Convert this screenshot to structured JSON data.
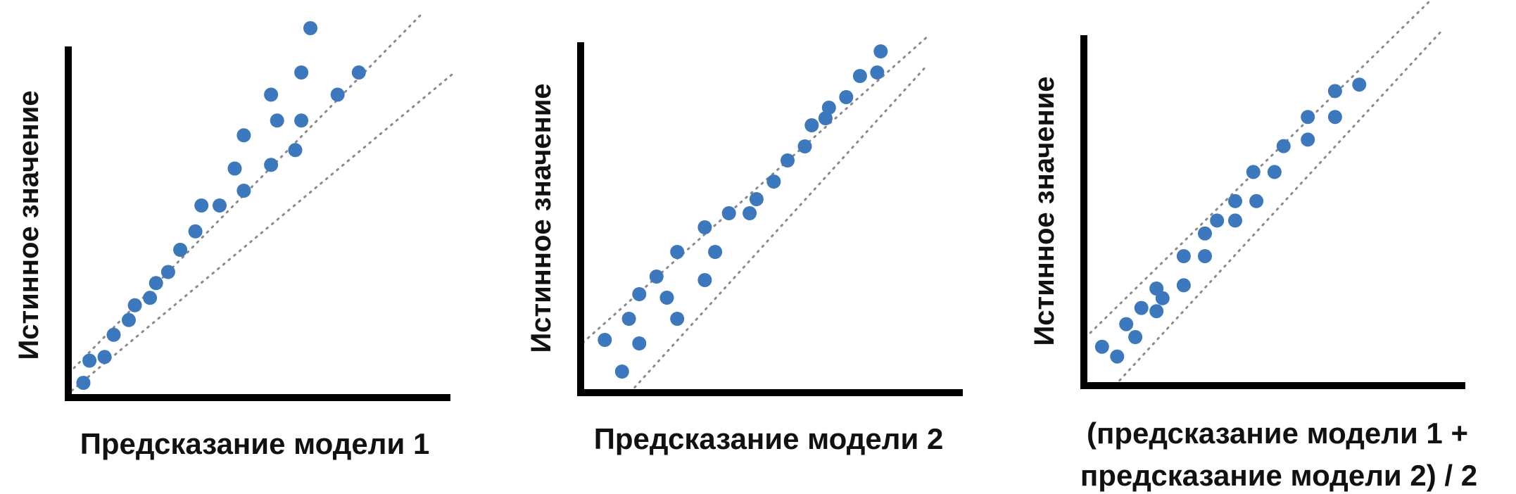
{
  "colors": {
    "point": "#3b78be",
    "axis": "#000000",
    "band": "#8a8a8a",
    "text": "#111111"
  },
  "chart_data": [
    {
      "type": "scatter",
      "xlabel": "Предсказание модели 1",
      "ylabel": "Истинное значение",
      "xlim": [
        0,
        100
      ],
      "ylim": [
        0,
        100
      ],
      "band_lines": "dotted",
      "points": [
        {
          "x": 5,
          "y": 4
        },
        {
          "x": 7,
          "y": 10
        },
        {
          "x": 12,
          "y": 11
        },
        {
          "x": 15,
          "y": 17
        },
        {
          "x": 20,
          "y": 21
        },
        {
          "x": 22,
          "y": 25
        },
        {
          "x": 27,
          "y": 27
        },
        {
          "x": 29,
          "y": 31
        },
        {
          "x": 33,
          "y": 34
        },
        {
          "x": 37,
          "y": 40
        },
        {
          "x": 42,
          "y": 45
        },
        {
          "x": 44,
          "y": 52
        },
        {
          "x": 50,
          "y": 52
        },
        {
          "x": 55,
          "y": 62
        },
        {
          "x": 58,
          "y": 56
        },
        {
          "x": 58,
          "y": 71
        },
        {
          "x": 67,
          "y": 63
        },
        {
          "x": 67,
          "y": 82
        },
        {
          "x": 69,
          "y": 75
        },
        {
          "x": 75,
          "y": 67
        },
        {
          "x": 77,
          "y": 75
        },
        {
          "x": 77,
          "y": 88
        },
        {
          "x": 80,
          "y": 100
        },
        {
          "x": 89,
          "y": 82
        },
        {
          "x": 96,
          "y": 88
        }
      ]
    },
    {
      "type": "scatter",
      "xlabel": "Предсказание модели 2",
      "ylabel": "Истинное значение",
      "xlim": [
        0,
        100
      ],
      "ylim": [
        0,
        100
      ],
      "band_lines": "dotted",
      "points": [
        {
          "x": 7,
          "y": 15
        },
        {
          "x": 12,
          "y": 6
        },
        {
          "x": 14,
          "y": 21
        },
        {
          "x": 17,
          "y": 14
        },
        {
          "x": 17,
          "y": 28
        },
        {
          "x": 22,
          "y": 33
        },
        {
          "x": 25,
          "y": 27
        },
        {
          "x": 28,
          "y": 21
        },
        {
          "x": 28,
          "y": 40
        },
        {
          "x": 36,
          "y": 32
        },
        {
          "x": 36,
          "y": 47
        },
        {
          "x": 39,
          "y": 40
        },
        {
          "x": 43,
          "y": 51
        },
        {
          "x": 49,
          "y": 51
        },
        {
          "x": 51,
          "y": 55
        },
        {
          "x": 56,
          "y": 60
        },
        {
          "x": 60,
          "y": 66
        },
        {
          "x": 65,
          "y": 70
        },
        {
          "x": 67,
          "y": 76
        },
        {
          "x": 71,
          "y": 78
        },
        {
          "x": 72,
          "y": 81
        },
        {
          "x": 77,
          "y": 84
        },
        {
          "x": 81,
          "y": 90
        },
        {
          "x": 86,
          "y": 91
        },
        {
          "x": 87,
          "y": 97
        }
      ]
    },
    {
      "type": "scatter",
      "xlabel_lines": [
        "(предсказание модели 1 +",
        "предсказание модели 2) / 2"
      ],
      "ylabel": "Истинное значение",
      "xlim": [
        0,
        100
      ],
      "ylim": [
        0,
        100
      ],
      "band_lines": "dotted",
      "points": [
        {
          "x": 6,
          "y": 12
        },
        {
          "x": 11,
          "y": 9
        },
        {
          "x": 14,
          "y": 19
        },
        {
          "x": 17,
          "y": 15
        },
        {
          "x": 19,
          "y": 24
        },
        {
          "x": 24,
          "y": 23
        },
        {
          "x": 24,
          "y": 30
        },
        {
          "x": 26,
          "y": 27
        },
        {
          "x": 33,
          "y": 31
        },
        {
          "x": 33,
          "y": 40
        },
        {
          "x": 40,
          "y": 40
        },
        {
          "x": 40,
          "y": 47
        },
        {
          "x": 44,
          "y": 51
        },
        {
          "x": 50,
          "y": 51
        },
        {
          "x": 50,
          "y": 57
        },
        {
          "x": 57,
          "y": 57
        },
        {
          "x": 56,
          "y": 66
        },
        {
          "x": 63,
          "y": 66
        },
        {
          "x": 66,
          "y": 74
        },
        {
          "x": 74,
          "y": 76
        },
        {
          "x": 74,
          "y": 83
        },
        {
          "x": 83,
          "y": 83
        },
        {
          "x": 83,
          "y": 91
        },
        {
          "x": 91,
          "y": 93
        }
      ]
    }
  ]
}
